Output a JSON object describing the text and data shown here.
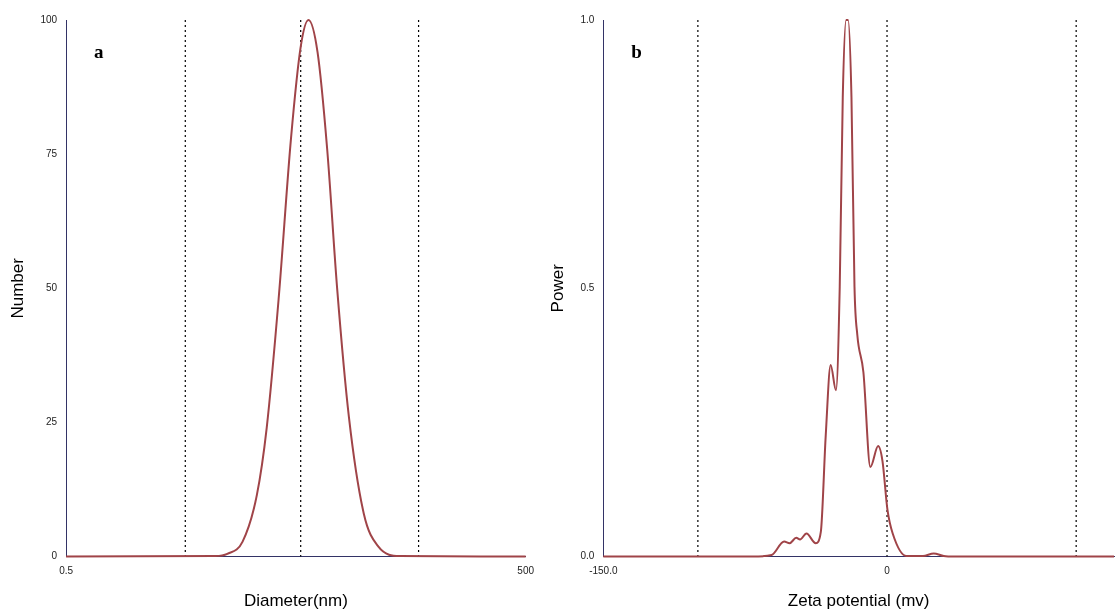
{
  "chart_data": [
    {
      "type": "line",
      "xlabel": "Diameter(nm)",
      "ylabel": "Number",
      "annotations": [
        "a"
      ],
      "log": "x",
      "marker": "none",
      "x": [
        0.5,
        4.72,
        5.64,
        7.1,
        8.8,
        10.2,
        12.2,
        14.7,
        17.0,
        19.1,
        21.9,
        25.3,
        29.4,
        35.1,
        43.9,
        54.5,
        75.5,
        500
      ],
      "series": [
        {
          "color": "#a04448",
          "values": [
            0,
            0.1,
            0.5,
            2.8,
            11.5,
            24,
            48,
            78,
            95,
            100,
            94,
            76,
            50,
            26,
            8,
            1.9,
            0.1,
            0
          ]
        }
      ],
      "xlim": [
        0.5,
        500
      ],
      "xticks": [
        0.5,
        500
      ],
      "ylim": [
        0,
        100
      ],
      "yticks": [
        0,
        25,
        50,
        75,
        100
      ],
      "ref_lines": [
        {
          "axis": "x",
          "value": 3,
          "color": "#000000",
          "line_style": "dotted"
        },
        {
          "axis": "x",
          "value": 17,
          "color": "#000000",
          "line_style": "dotted"
        },
        {
          "axis": "x",
          "value": 100,
          "color": "#000000",
          "line_style": "dotted"
        }
      ]
    },
    {
      "type": "line",
      "xlabel": "Zeta potential (mv)",
      "ylabel": "Power",
      "annotations": [
        "b"
      ],
      "marker": "none",
      "x": [
        -150,
        -71.6,
        -61,
        -54.4,
        -51.5,
        -48,
        -46,
        -42.6,
        -37.7,
        -35,
        -32.4,
        -29.8,
        -27,
        -25,
        -23.4,
        -21.6,
        -20.6,
        -18.8,
        -17.2,
        -15.7,
        -12.5,
        -8.8,
        -4.7,
        -2.4,
        0.2,
        3,
        10.3,
        19,
        24.7,
        30,
        35.6,
        120
      ],
      "series": [
        {
          "color": "#a04448",
          "values": [
            0,
            0,
            0.003,
            0.028,
            0.025,
            0.035,
            0.032,
            0.043,
            0.025,
            0.046,
            0.226,
            0.357,
            0.31,
            0.503,
            0.856,
            1.0,
            1.0,
            0.856,
            0.503,
            0.413,
            0.344,
            0.167,
            0.206,
            0.178,
            0.088,
            0.043,
            0.001,
            0.001,
            0.006,
            0.001,
            0,
            0
          ]
        }
      ],
      "xlim": [
        -150,
        120
      ],
      "xticks": [
        {
          "value": -150,
          "label": "-150.0"
        },
        0
      ],
      "ylim": [
        0,
        1
      ],
      "yticks": [
        {
          "value": 0,
          "label": "0.0"
        },
        {
          "value": 0.5,
          "label": "0.5"
        },
        {
          "value": 1,
          "label": "1.0"
        }
      ],
      "ref_lines": [
        {
          "axis": "x",
          "value": -100,
          "color": "#000000",
          "line_style": "dotted"
        },
        {
          "axis": "x",
          "value": 0,
          "color": "#000000",
          "line_style": "dotted"
        },
        {
          "axis": "x",
          "value": 100,
          "color": "#000000",
          "line_style": "dotted"
        }
      ]
    }
  ]
}
